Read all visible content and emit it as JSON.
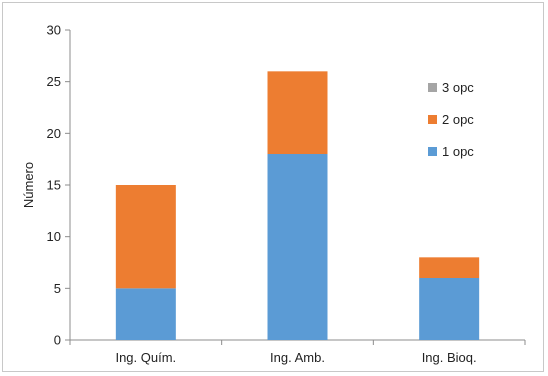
{
  "chart_data": {
    "type": "bar",
    "stacked": true,
    "categories": [
      "Ing. Quím.",
      "Ing. Amb.",
      "Ing. Bioq."
    ],
    "series": [
      {
        "name": "1 opc",
        "color": "#5b9bd5",
        "values": [
          5,
          18,
          6
        ]
      },
      {
        "name": "2 opc",
        "color": "#ed7d31",
        "values": [
          10,
          8,
          2
        ]
      },
      {
        "name": "3 opc",
        "color": "#a5a5a5",
        "values": [
          0,
          0,
          0
        ]
      }
    ],
    "title": "",
    "xlabel": "",
    "ylabel": "Número",
    "ylim": [
      0,
      30
    ],
    "yticks": [
      0,
      5,
      10,
      15,
      20,
      25,
      30
    ],
    "grid": false,
    "legend_position": "right"
  }
}
